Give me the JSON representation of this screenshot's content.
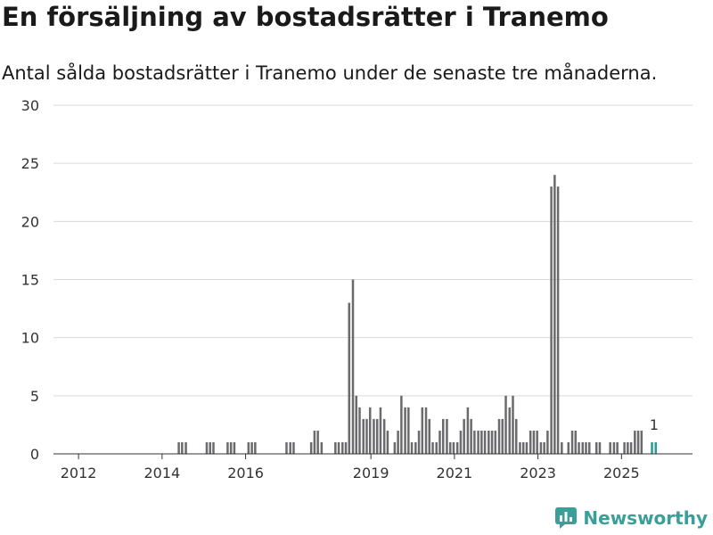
{
  "header": {
    "title": "En försäljning av bostadsrätter i Tranemo",
    "subtitle": "Antal sålda bostadsrätter i Tranemo under de senaste tre månaderna."
  },
  "brand": {
    "name": "Newsworthy"
  },
  "colors": {
    "bar": "#6b6b6e",
    "highlight": "#2e9a95",
    "grid": "#d9d9d9",
    "axis": "#333333",
    "brand": "#3a9e99"
  },
  "chart_data": {
    "type": "bar",
    "title": "En försäljning av bostadsrätter i Tranemo",
    "xlabel": "",
    "ylabel": "",
    "ylim": [
      0,
      30
    ],
    "yticks": [
      0,
      5,
      10,
      15,
      20,
      25,
      30
    ],
    "xticks": [
      {
        "label": "2012",
        "x": 2012.1
      },
      {
        "label": "2014",
        "x": 2014.1
      },
      {
        "label": "2016",
        "x": 2016.1
      },
      {
        "label": "2019",
        "x": 2019.1
      },
      {
        "label": "2021",
        "x": 2021.1
      },
      {
        "label": "2023",
        "x": 2023.1
      },
      {
        "label": "2025",
        "x": 2025.1
      }
    ],
    "xrange": [
      2011.5,
      2026.8
    ],
    "bar_width_years": 0.075,
    "series": [
      {
        "name": "Sålda bostadsrätter",
        "points": [
          [
            2014.5,
            1
          ],
          [
            2014.58,
            1
          ],
          [
            2014.67,
            1
          ],
          [
            2015.17,
            1
          ],
          [
            2015.25,
            1
          ],
          [
            2015.33,
            1
          ],
          [
            2015.67,
            1
          ],
          [
            2015.75,
            1
          ],
          [
            2015.83,
            1
          ],
          [
            2016.17,
            1
          ],
          [
            2016.25,
            1
          ],
          [
            2016.33,
            1
          ],
          [
            2017.08,
            1
          ],
          [
            2017.17,
            1
          ],
          [
            2017.25,
            1
          ],
          [
            2017.67,
            1
          ],
          [
            2017.75,
            2
          ],
          [
            2017.83,
            2
          ],
          [
            2017.92,
            1
          ],
          [
            2018.25,
            1
          ],
          [
            2018.33,
            1
          ],
          [
            2018.42,
            1
          ],
          [
            2018.5,
            1
          ],
          [
            2018.58,
            13
          ],
          [
            2018.67,
            15
          ],
          [
            2018.75,
            5
          ],
          [
            2018.83,
            4
          ],
          [
            2018.92,
            3
          ],
          [
            2019.0,
            3
          ],
          [
            2019.08,
            4
          ],
          [
            2019.17,
            3
          ],
          [
            2019.25,
            3
          ],
          [
            2019.33,
            4
          ],
          [
            2019.42,
            3
          ],
          [
            2019.5,
            2
          ],
          [
            2019.67,
            1
          ],
          [
            2019.75,
            2
          ],
          [
            2019.83,
            5
          ],
          [
            2019.92,
            4
          ],
          [
            2020.0,
            4
          ],
          [
            2020.08,
            1
          ],
          [
            2020.17,
            1
          ],
          [
            2020.25,
            2
          ],
          [
            2020.33,
            4
          ],
          [
            2020.42,
            4
          ],
          [
            2020.5,
            3
          ],
          [
            2020.58,
            1
          ],
          [
            2020.67,
            1
          ],
          [
            2020.75,
            2
          ],
          [
            2020.83,
            3
          ],
          [
            2020.92,
            3
          ],
          [
            2021.0,
            1
          ],
          [
            2021.08,
            1
          ],
          [
            2021.17,
            1
          ],
          [
            2021.25,
            2
          ],
          [
            2021.33,
            3
          ],
          [
            2021.42,
            4
          ],
          [
            2021.5,
            3
          ],
          [
            2021.58,
            2
          ],
          [
            2021.67,
            2
          ],
          [
            2021.75,
            2
          ],
          [
            2021.83,
            2
          ],
          [
            2021.92,
            2
          ],
          [
            2022.0,
            2
          ],
          [
            2022.08,
            2
          ],
          [
            2022.17,
            3
          ],
          [
            2022.25,
            3
          ],
          [
            2022.33,
            5
          ],
          [
            2022.42,
            4
          ],
          [
            2022.5,
            5
          ],
          [
            2022.58,
            3
          ],
          [
            2022.67,
            1
          ],
          [
            2022.75,
            1
          ],
          [
            2022.83,
            1
          ],
          [
            2022.92,
            2
          ],
          [
            2023.0,
            2
          ],
          [
            2023.08,
            2
          ],
          [
            2023.17,
            1
          ],
          [
            2023.25,
            1
          ],
          [
            2023.33,
            2
          ],
          [
            2023.42,
            23
          ],
          [
            2023.5,
            24
          ],
          [
            2023.58,
            23
          ],
          [
            2023.67,
            1
          ],
          [
            2023.83,
            1
          ],
          [
            2023.92,
            2
          ],
          [
            2024.0,
            2
          ],
          [
            2024.08,
            1
          ],
          [
            2024.17,
            1
          ],
          [
            2024.25,
            1
          ],
          [
            2024.33,
            1
          ],
          [
            2024.5,
            1
          ],
          [
            2024.58,
            1
          ],
          [
            2024.83,
            1
          ],
          [
            2024.92,
            1
          ],
          [
            2025.0,
            1
          ],
          [
            2025.17,
            1
          ],
          [
            2025.25,
            1
          ],
          [
            2025.33,
            1
          ],
          [
            2025.42,
            2
          ],
          [
            2025.5,
            2
          ],
          [
            2025.58,
            2
          ]
        ]
      },
      {
        "name": "Senaste tre månaderna",
        "points": [
          [
            2025.83,
            1
          ],
          [
            2025.92,
            1
          ]
        ]
      }
    ],
    "annotations": [
      {
        "text": "1",
        "x": 2025.88,
        "y": 1
      }
    ]
  }
}
